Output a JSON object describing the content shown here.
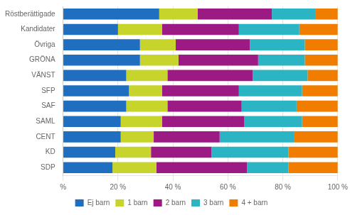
{
  "chart_data": {
    "type": "bar",
    "orientation": "horizontal",
    "stacked": true,
    "categories": [
      "Röstberättigade",
      "Kandidater",
      "Övriga",
      "GRÖNA",
      "VÄNST",
      "SFP",
      "SAF",
      "SAML",
      "CENT",
      "KD",
      "SDP"
    ],
    "series": [
      {
        "name": "Ej barn",
        "color": "#1F6EBF",
        "values": [
          35,
          20,
          28,
          28,
          23,
          24,
          23,
          21,
          21,
          19,
          18
        ]
      },
      {
        "name": "1 barn",
        "color": "#C6D42C",
        "values": [
          14,
          16,
          13,
          14,
          15,
          12,
          15,
          15,
          12,
          13,
          16
        ]
      },
      {
        "name": "2 barn",
        "color": "#9B1A83",
        "values": [
          27,
          28,
          27,
          29,
          31,
          28,
          27,
          30,
          24,
          22,
          33
        ]
      },
      {
        "name": "3 barn",
        "color": "#2BB5C4",
        "values": [
          16,
          22,
          20,
          17,
          20,
          23,
          20,
          21,
          27,
          28,
          15
        ]
      },
      {
        "name": "4 + barn",
        "color": "#F07D00",
        "values": [
          8,
          14,
          12,
          12,
          11,
          13,
          15,
          13,
          16,
          18,
          18
        ]
      }
    ],
    "xlim": [
      0,
      100
    ],
    "xticks": [
      {
        "value": 0,
        "label": "%"
      },
      {
        "value": 20,
        "label": "20 %"
      },
      {
        "value": 40,
        "label": "40 %"
      },
      {
        "value": 60,
        "label": "60 %"
      },
      {
        "value": 80,
        "label": "80 %"
      },
      {
        "value": 100,
        "label": "100 %"
      }
    ],
    "grid": true,
    "legend": "bottom"
  }
}
